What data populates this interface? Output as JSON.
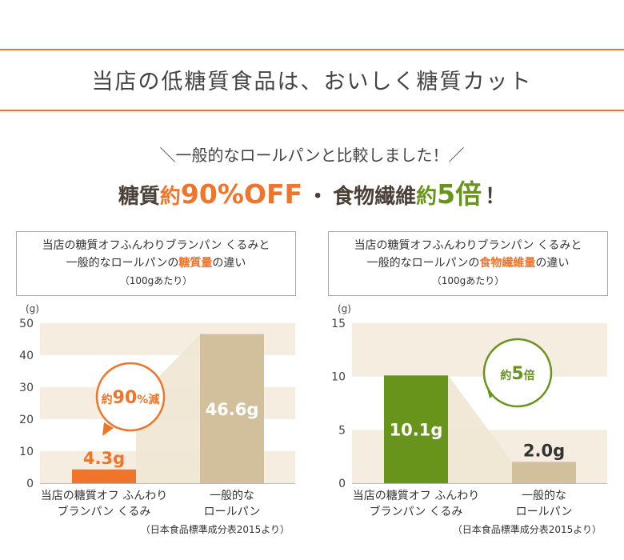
{
  "colors": {
    "accent_orange": "#f0742a",
    "brown": "#d2c09c",
    "green": "#68941c",
    "grid_band": "#f4ede0",
    "headline_dark": "#4a4038",
    "callout_green_text": "#5a8a1c"
  },
  "page": {
    "heading": "当店の低糖質食品は、おいしく糖質カット",
    "compare_line": "＼一般的なロールパンと比較しました！／",
    "headline": {
      "part1": "糖質",
      "part2": "約",
      "part3": "90%OFF",
      "part4": "・",
      "part5": "食物繊維",
      "part6": "約",
      "part7": "5倍",
      "part8": "！"
    }
  },
  "chart_data": [
    {
      "type": "bar",
      "caption": {
        "line1": "当店の糖質オフふんわりブランパン くるみと",
        "line2_pre": "一般的なロールパンの",
        "line2_highlight": "糖質量",
        "line2_post": "の違い",
        "line3": "（100gあたり）"
      },
      "unit": "(g)",
      "ylim": [
        0,
        50
      ],
      "yticks": [
        "0",
        "10",
        "20",
        "30",
        "40",
        "50"
      ],
      "categories": [
        {
          "line1": "当店の糖質オフ ふんわり",
          "line2": "ブランパン くるみ"
        },
        {
          "line1": "一般的な",
          "line2": "ロールパン"
        }
      ],
      "values": [
        4.3,
        46.6
      ],
      "value_labels": [
        "4.3g",
        "46.6g"
      ],
      "callout": {
        "pre": "約",
        "value": "90",
        "suffix": "%減"
      },
      "source": "（日本食品標準成分表2015より）"
    },
    {
      "type": "bar",
      "caption": {
        "line1": "当店の糖質オフふんわりブランパン くるみと",
        "line2_pre": "一般的なロールパンの",
        "line2_highlight": "食物繊維量",
        "line2_post": "の違い",
        "line3": "（100gあたり）"
      },
      "unit": "(g)",
      "ylim": [
        0,
        15
      ],
      "yticks": [
        "0",
        "5",
        "10",
        "15"
      ],
      "categories": [
        {
          "line1": "当店の糖質オフ ふんわり",
          "line2": "ブランパン くるみ"
        },
        {
          "line1": "一般的な",
          "line2": "ロールパン"
        }
      ],
      "values": [
        10.1,
        2.0
      ],
      "value_labels": [
        "10.1g",
        "2.0g"
      ],
      "callout": {
        "pre": "約",
        "value": "5",
        "suffix": "倍"
      },
      "source": "（日本食品標準成分表2015より）"
    }
  ]
}
